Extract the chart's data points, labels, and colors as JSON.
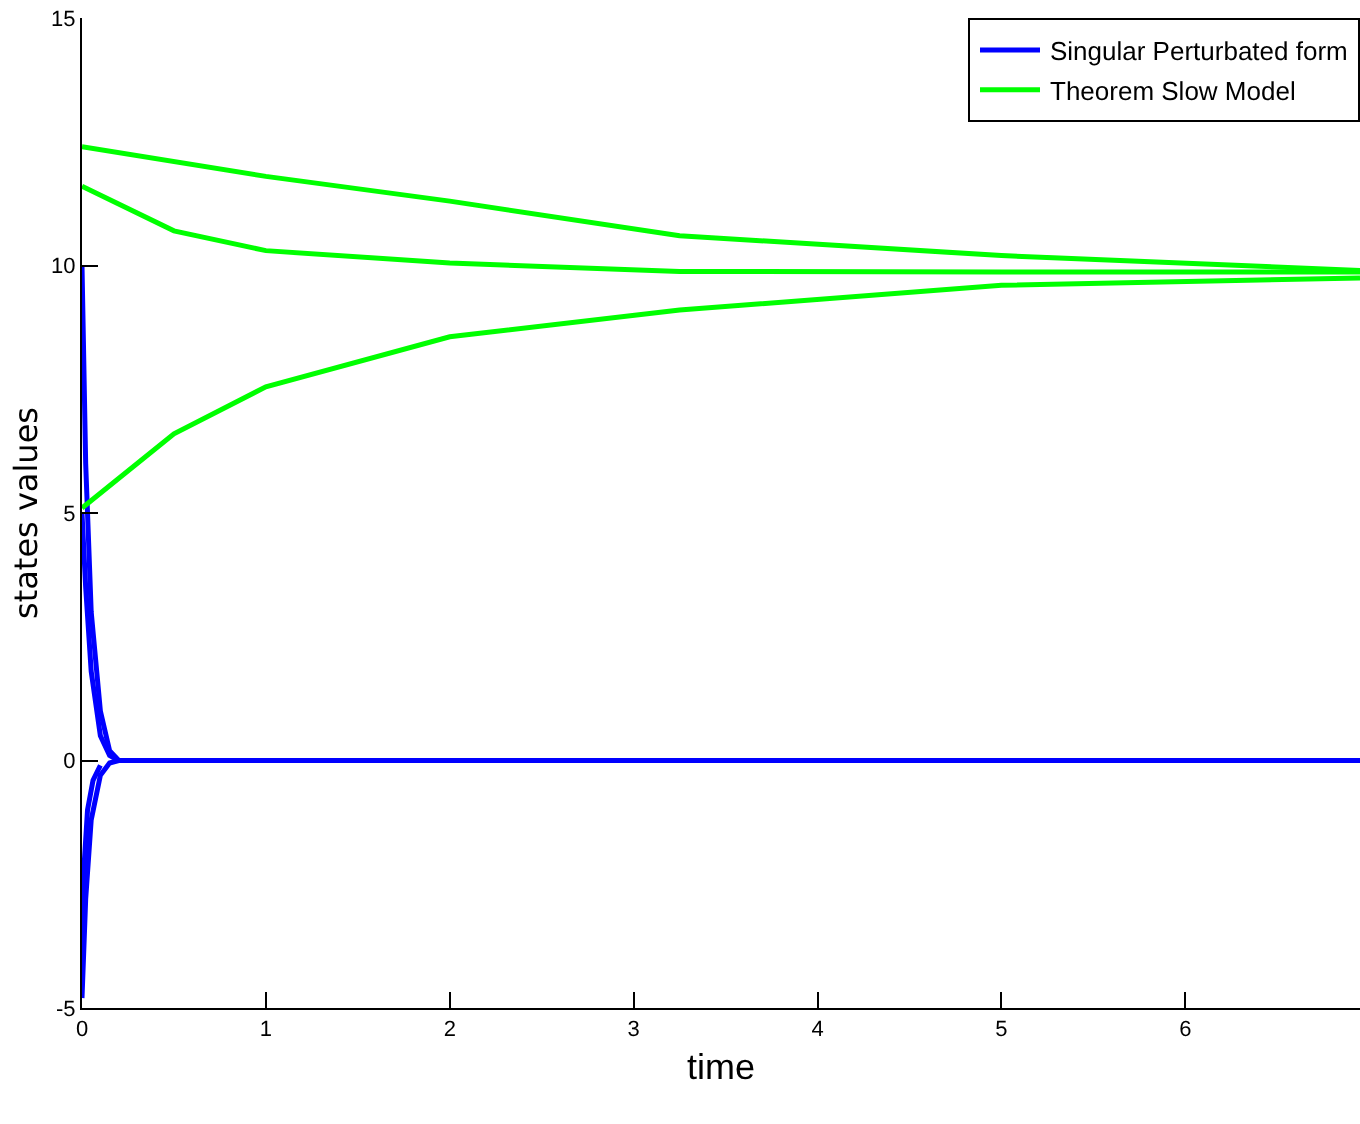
{
  "chart_data": {
    "type": "line",
    "xlabel": "time",
    "ylabel": "states values",
    "xlim": [
      0,
      6.95
    ],
    "ylim": [
      -5,
      15
    ],
    "xticks": [
      0,
      1,
      2,
      3,
      4,
      5,
      6
    ],
    "yticks": [
      -5,
      0,
      5,
      10,
      15
    ],
    "grid": false,
    "legend": "top right",
    "marker": "none",
    "line_style": "solid",
    "series": [
      {
        "name": "Singular Perturbated form",
        "color": "#0000ff",
        "x": [
          0,
          0.02,
          0.05,
          0.1,
          0.15,
          0.2,
          1,
          6.95
        ],
        "values": [
          10,
          6,
          3,
          1,
          0.2,
          0,
          0,
          0
        ]
      },
      {
        "color": "#0000ff",
        "x": [
          0,
          0.02,
          0.05,
          0.1,
          0.15,
          0.2
        ],
        "values": [
          5,
          3.5,
          1.8,
          0.5,
          0.1,
          0
        ]
      },
      {
        "color": "#0000ff",
        "x": [
          0,
          0.02,
          0.05,
          0.1,
          0.15,
          0.2
        ],
        "values": [
          -4.8,
          -2.8,
          -1.2,
          -0.3,
          -0.05,
          0
        ]
      },
      {
        "color": "#0000ff",
        "x": [
          0,
          0.01,
          0.03,
          0.06,
          0.1
        ],
        "values": [
          -3.8,
          -2.2,
          -1,
          -0.4,
          -0.1
        ]
      },
      {
        "name": "Theorem Slow Model",
        "color": "#00ff00",
        "x": [
          0,
          1,
          2,
          3.25,
          5,
          6.95
        ],
        "values": [
          12.4,
          11.8,
          11.3,
          10.6,
          10.2,
          9.9
        ]
      },
      {
        "color": "#00ff00",
        "x": [
          0,
          0.5,
          1,
          2,
          3.25,
          5,
          6.95
        ],
        "values": [
          11.6,
          10.7,
          10.3,
          10.05,
          9.88,
          9.87,
          9.87
        ]
      },
      {
        "color": "#00ff00",
        "x": [
          0,
          0.5,
          1,
          2,
          3.25,
          5,
          6.95
        ],
        "values": [
          5.1,
          6.6,
          7.55,
          8.56,
          9.1,
          9.6,
          9.75
        ]
      }
    ]
  }
}
